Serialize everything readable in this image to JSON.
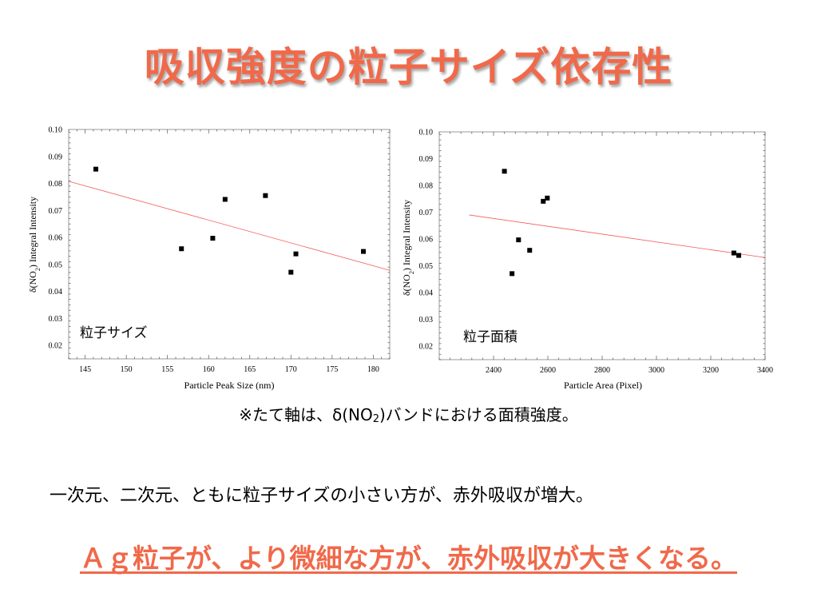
{
  "slide": {
    "title": "吸収強度の粒子サイズ依存性",
    "note_prefix": "※たて軸は、δ(NO",
    "note_sub": "2",
    "note_suffix": ")バンドにおける面積強度。",
    "summary": "一次元、二次元、ともに粒子サイズの小さい方が、赤外吸収が増大。",
    "conclusion": "Ａｇ粒子が、より微細な方が、赤外吸収が大きくなる。"
  },
  "colors": {
    "title": "#f0694a",
    "fit_line": "#f25c5c",
    "marker": "#000000"
  },
  "chart_data": [
    {
      "type": "scatter",
      "panel_label": "粒子サイズ",
      "xlabel": "Particle Peak Size (nm)",
      "ylabel_main": "δ(NO",
      "ylabel_sub": "2",
      "ylabel_tail": ") Integral Intensity",
      "xlim": [
        143,
        182
      ],
      "ylim": [
        0.015,
        0.1
      ],
      "xticks": [
        "145",
        "150",
        "155",
        "160",
        "165",
        "170",
        "175",
        "180"
      ],
      "yticks": [
        "0.02",
        "0.03",
        "0.04",
        "0.05",
        "0.06",
        "0.07",
        "0.08",
        "0.09",
        "0.10"
      ],
      "points": [
        {
          "x": 146.3,
          "y": 0.0853
        },
        {
          "x": 156.7,
          "y": 0.0558
        },
        {
          "x": 160.5,
          "y": 0.0597
        },
        {
          "x": 162.0,
          "y": 0.0741
        },
        {
          "x": 166.9,
          "y": 0.0755
        },
        {
          "x": 170.0,
          "y": 0.0471
        },
        {
          "x": 170.6,
          "y": 0.0539
        },
        {
          "x": 178.8,
          "y": 0.0548
        }
      ],
      "fit_line": [
        {
          "x": 143,
          "y": 0.0808
        },
        {
          "x": 182,
          "y": 0.0478
        }
      ],
      "grid": false
    },
    {
      "type": "scatter",
      "panel_label": "粒子面積",
      "xlabel": "Particle Area (Pixel)",
      "ylabel_main": "δ(NO",
      "ylabel_sub": "2",
      "ylabel_tail": ") Integral Intensity",
      "xlim": [
        2200,
        3400
      ],
      "ylim": [
        0.015,
        0.1
      ],
      "xticks": [
        "2400",
        "2600",
        "2800",
        "3000",
        "3200",
        "3400"
      ],
      "yticks": [
        "0.02",
        "0.03",
        "0.04",
        "0.05",
        "0.06",
        "0.07",
        "0.08",
        "0.09",
        "0.10"
      ],
      "points": [
        {
          "x": 2440,
          "y": 0.0853
        },
        {
          "x": 2468,
          "y": 0.0471
        },
        {
          "x": 2492,
          "y": 0.0597
        },
        {
          "x": 2533,
          "y": 0.0558
        },
        {
          "x": 2583,
          "y": 0.0741
        },
        {
          "x": 2598,
          "y": 0.0753
        },
        {
          "x": 3285,
          "y": 0.0548
        },
        {
          "x": 3303,
          "y": 0.0539
        }
      ],
      "fit_line": [
        {
          "x": 2310,
          "y": 0.069
        },
        {
          "x": 3400,
          "y": 0.0531
        }
      ],
      "grid": false
    }
  ]
}
